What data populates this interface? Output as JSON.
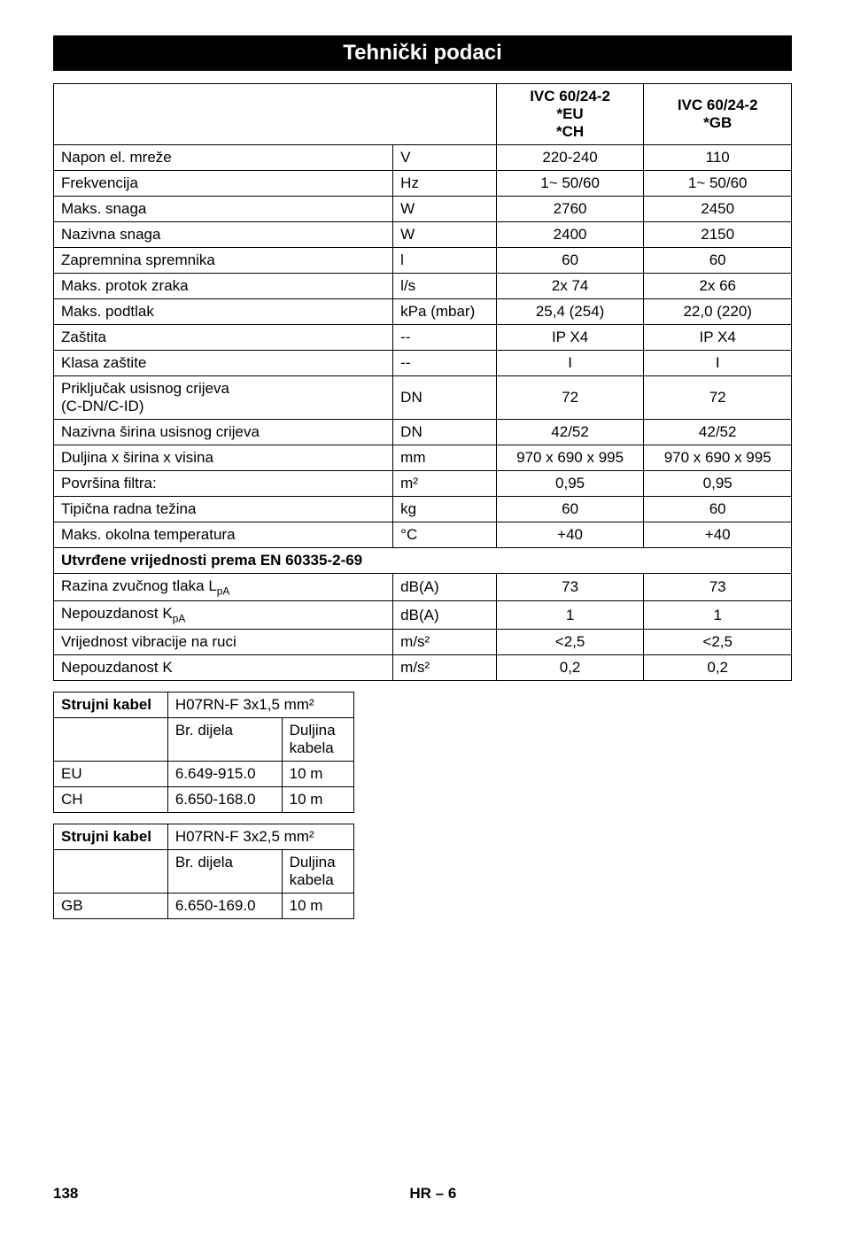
{
  "title": "Tehnički podaci",
  "headers": {
    "col_v1": "IVC 60/24-2\n*EU\n*CH",
    "col_v2": "IVC 60/24-2\n*GB"
  },
  "rows": [
    {
      "label": "Napon el. mreže",
      "unit": "V",
      "v1": "220-240",
      "v2": "110"
    },
    {
      "label": "Frekvencija",
      "unit": "Hz",
      "v1": "1~ 50/60",
      "v2": "1~ 50/60"
    },
    {
      "label": "Maks. snaga",
      "unit": "W",
      "v1": "2760",
      "v2": "2450"
    },
    {
      "label": "Nazivna snaga",
      "unit": "W",
      "v1": "2400",
      "v2": "2150"
    },
    {
      "label": "Zapremnina spremnika",
      "unit": "l",
      "v1": "60",
      "v2": "60"
    },
    {
      "label": "Maks. protok zraka",
      "unit": "l/s",
      "v1": "2x 74",
      "v2": "2x 66"
    },
    {
      "label": "Maks. podtlak",
      "unit": "kPa (mbar)",
      "v1": "25,4 (254)",
      "v2": "22,0 (220)"
    },
    {
      "label": "Zaštita",
      "unit": "--",
      "v1": "IP X4",
      "v2": "IP X4"
    },
    {
      "label": "Klasa zaštite",
      "unit": "--",
      "v1": "I",
      "v2": "I"
    },
    {
      "label": "Priključak usisnog crijeva\n(C-DN/C-ID)",
      "unit": "DN",
      "v1": "72",
      "v2": "72"
    },
    {
      "label": "Nazivna širina usisnog crijeva",
      "unit": "DN",
      "v1": "42/52",
      "v2": "42/52"
    },
    {
      "label": "Duljina x širina x visina",
      "unit": "mm",
      "v1": "970 x 690 x 995",
      "v2": "970 x 690 x 995"
    },
    {
      "label": "Površina filtra:",
      "unit": "m²",
      "v1": "0,95",
      "v2": "0,95"
    },
    {
      "label": "Tipična radna težina",
      "unit": "kg",
      "v1": "60",
      "v2": "60"
    },
    {
      "label": "Maks. okolna temperatura",
      "unit": "°C",
      "v1": "+40",
      "v2": "+40"
    }
  ],
  "section_label": "Utvrđene vrijednosti prema EN 60335-2-69",
  "rows2": [
    {
      "label_html": "Razina zvučnog tlaka L<sub>pA</sub>",
      "unit": "dB(A)",
      "v1": "73",
      "v2": "73"
    },
    {
      "label_html": "Nepouzdanost K<sub>pA</sub>",
      "unit": "dB(A)",
      "v1": "1",
      "v2": "1"
    },
    {
      "label": "Vrijednost vibracije na ruci",
      "unit": "m/s²",
      "v1": "<2,5",
      "v2": "<2,5"
    },
    {
      "label": "Nepouzdanost K",
      "unit": "m/s²",
      "v1": "0,2",
      "v2": "0,2"
    }
  ],
  "cable_label": "Strujni kabel",
  "cable1": {
    "spec": "H07RN-F 3x1,5 mm²",
    "h_part": "Br. dijela",
    "h_len": "Duljina kabela",
    "rows": [
      {
        "region": "EU",
        "part": "6.649-915.0",
        "len": "10 m"
      },
      {
        "region": "CH",
        "part": "6.650-168.0",
        "len": "10 m"
      }
    ]
  },
  "cable2": {
    "spec": "H07RN-F 3x2,5 mm²",
    "h_part": "Br. dijela",
    "h_len": "Duljina kabela",
    "rows": [
      {
        "region": "GB",
        "part": "6.650-169.0",
        "len": "10 m"
      }
    ]
  },
  "footer": {
    "page": "138",
    "section": "HR – 6"
  }
}
